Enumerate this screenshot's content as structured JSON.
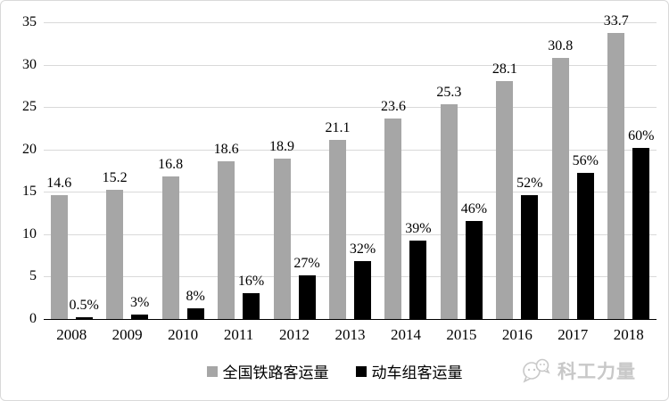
{
  "chart_data": {
    "type": "bar",
    "categories": [
      "2008",
      "2009",
      "2010",
      "2011",
      "2012",
      "2013",
      "2014",
      "2015",
      "2016",
      "2017",
      "2018"
    ],
    "series": [
      {
        "name": "全国铁路客运量",
        "color": "#a6a6a6",
        "values": [
          14.6,
          15.2,
          16.8,
          18.6,
          18.9,
          21.1,
          23.6,
          25.3,
          28.1,
          30.8,
          33.7
        ],
        "labels": [
          "14.6",
          "15.2",
          "16.8",
          "18.6",
          "18.9",
          "21.1",
          "23.6",
          "25.3",
          "28.1",
          "30.8",
          "33.7"
        ]
      },
      {
        "name": "动车组客运量",
        "color": "#000000",
        "values": [
          0.1,
          0.5,
          1.3,
          3.0,
          5.1,
          6.8,
          9.2,
          11.6,
          14.6,
          17.2,
          20.2
        ],
        "labels": [
          "0.5%",
          "3%",
          "8%",
          "16%",
          "27%",
          "32%",
          "39%",
          "46%",
          "52%",
          "56%",
          "60%"
        ]
      }
    ],
    "ylim": [
      0,
      35
    ],
    "yticks": [
      0,
      5,
      10,
      15,
      20,
      25,
      30,
      35
    ],
    "grid": true,
    "legend_position": "bottom",
    "gridline_color": "#d9d9d9",
    "axis_color": "#000000"
  },
  "legend": {
    "items": [
      {
        "label": "全国铁路客运量",
        "color": "#a6a6a6"
      },
      {
        "label": "动车组客运量",
        "color": "#000000"
      }
    ]
  },
  "watermark": {
    "text": "科工力量"
  }
}
